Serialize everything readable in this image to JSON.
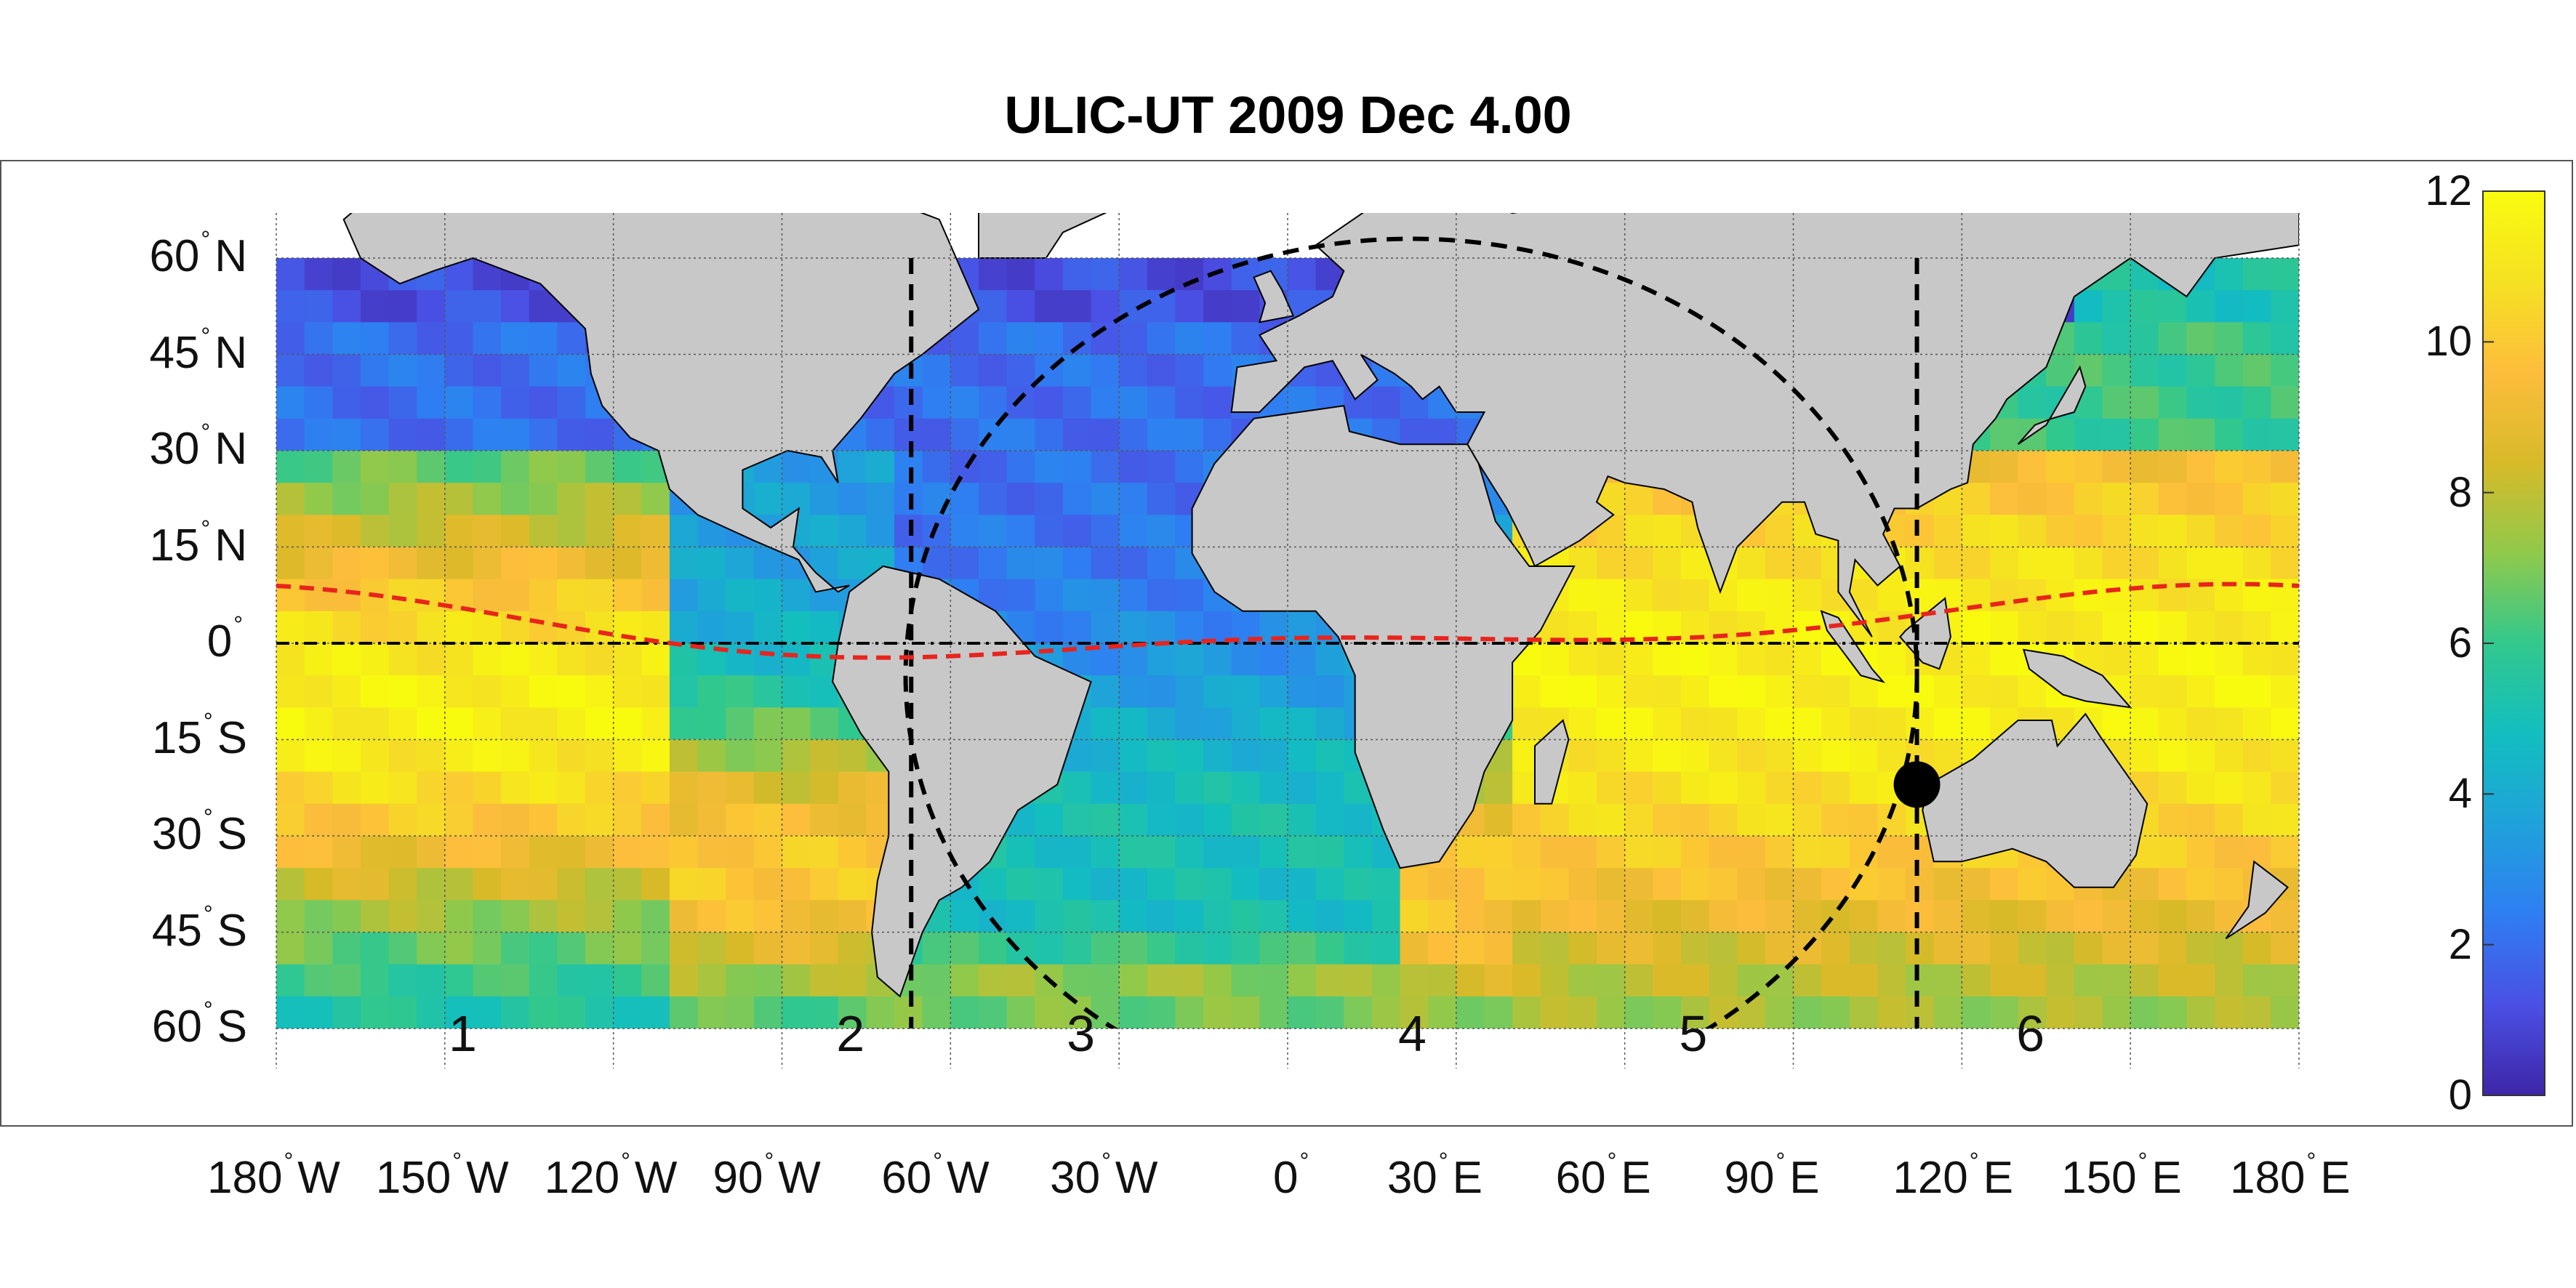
{
  "title": "ULIC-UT 2009 Dec  4.00",
  "lat_labels": [
    {
      "value": "60",
      "hemi": "N",
      "lat": 60
    },
    {
      "value": "45",
      "hemi": "N",
      "lat": 45
    },
    {
      "value": "30",
      "hemi": "N",
      "lat": 30
    },
    {
      "value": "15",
      "hemi": "N",
      "lat": 15
    },
    {
      "value": "0",
      "hemi": "",
      "lat": 0
    },
    {
      "value": "15",
      "hemi": "S",
      "lat": -15
    },
    {
      "value": "30",
      "hemi": "S",
      "lat": -30
    },
    {
      "value": "45",
      "hemi": "S",
      "lat": -45
    },
    {
      "value": "60",
      "hemi": "S",
      "lat": -60
    }
  ],
  "lon_labels": [
    {
      "value": "180",
      "hemi": "W",
      "lon": -180
    },
    {
      "value": "150",
      "hemi": "W",
      "lon": -150
    },
    {
      "value": "120",
      "hemi": "W",
      "lon": -120
    },
    {
      "value": "90",
      "hemi": "W",
      "lon": -90
    },
    {
      "value": "60",
      "hemi": "W",
      "lon": -60
    },
    {
      "value": "30",
      "hemi": "W",
      "lon": -30
    },
    {
      "value": "0",
      "hemi": "",
      "lon": 0
    },
    {
      "value": "30",
      "hemi": "E",
      "lon": 30
    },
    {
      "value": "60",
      "hemi": "E",
      "lon": 60
    },
    {
      "value": "90",
      "hemi": "E",
      "lon": 90
    },
    {
      "value": "120",
      "hemi": "E",
      "lon": 120
    },
    {
      "value": "150",
      "hemi": "E",
      "lon": 150
    },
    {
      "value": "180",
      "hemi": "E",
      "lon": 180
    }
  ],
  "zone_labels": [
    {
      "text": "1",
      "lon": -147
    },
    {
      "text": "2",
      "lon": -78
    },
    {
      "text": "3",
      "lon": -37
    },
    {
      "text": "4",
      "lon": 22
    },
    {
      "text": "5",
      "lon": 72
    },
    {
      "text": "6",
      "lon": 132
    }
  ],
  "colorbar": {
    "min": 0,
    "max": 12,
    "ticks": [
      "0",
      "2",
      "4",
      "6",
      "8",
      "10",
      "12"
    ],
    "colors": [
      "#3e26a8",
      "#4a50e4",
      "#2f7ef2",
      "#1fa2da",
      "#12bebf",
      "#32c88d",
      "#90c94b",
      "#d8ba28",
      "#fdbd3c",
      "#f5e122",
      "#f9fb0e"
    ]
  },
  "map": {
    "lon_range": [
      -180,
      180
    ],
    "lat_range": [
      -60,
      60
    ],
    "land_color": "#c8c8c8",
    "terminator_color": "#000000",
    "subsolar_line_color": "#e8241c",
    "subsolar_point": {
      "lon": 112,
      "lat": -22
    },
    "meridian_lines": [
      -67,
      112
    ],
    "terminator_ellipse_center_lon": 22,
    "terminator_half_width_lon": 90
  }
}
